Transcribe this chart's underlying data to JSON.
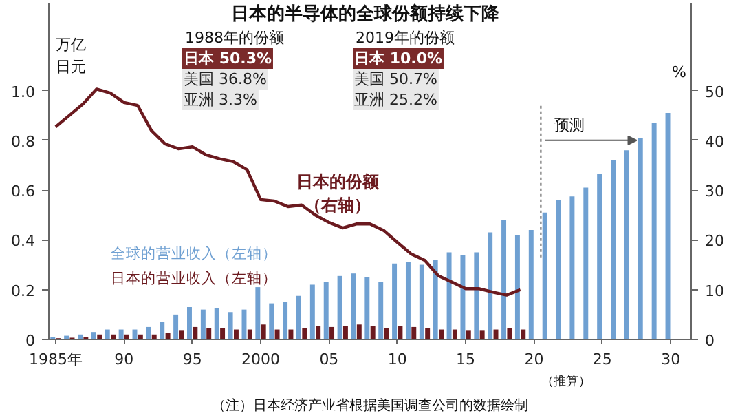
{
  "chart_data": {
    "type": "bar",
    "title": "日本的半导体的全球份额持续下降",
    "ylabel": "万亿日元",
    "y2label": "%",
    "x": [
      1985,
      1986,
      1987,
      1988,
      1989,
      1990,
      1991,
      1992,
      1993,
      1994,
      1995,
      1996,
      1997,
      1998,
      1999,
      2000,
      2001,
      2002,
      2003,
      2004,
      2005,
      2006,
      2007,
      2008,
      2009,
      2010,
      2011,
      2012,
      2013,
      2014,
      2015,
      2016,
      2017,
      2018,
      2019,
      2020,
      2021,
      2022,
      2023,
      2024,
      2025,
      2026,
      2027,
      2028,
      2029,
      2030
    ],
    "series": [
      {
        "name": "全球的营业收入（左轴）",
        "color": "#6fa0d2",
        "values": [
          0.01,
          0.015,
          0.02,
          0.03,
          0.04,
          0.04,
          0.04,
          0.05,
          0.07,
          0.1,
          0.13,
          0.12,
          0.125,
          0.11,
          0.12,
          0.21,
          0.145,
          0.15,
          0.175,
          0.22,
          0.23,
          0.255,
          0.265,
          0.25,
          0.23,
          0.305,
          0.31,
          0.3,
          0.32,
          0.35,
          0.34,
          0.35,
          0.43,
          0.48,
          0.42,
          0.44,
          0.51,
          0.56,
          0.575,
          0.61,
          0.665,
          0.72,
          0.76,
          0.81,
          0.87,
          0.91
        ]
      },
      {
        "name": "日本的营业收入（左轴）",
        "color": "#6b1a1f",
        "values": [
          0.005,
          0.007,
          0.01,
          0.02,
          0.02,
          0.02,
          0.02,
          0.02,
          0.025,
          0.035,
          0.05,
          0.045,
          0.045,
          0.04,
          0.04,
          0.06,
          0.04,
          0.04,
          0.045,
          0.055,
          0.05,
          0.055,
          0.06,
          0.055,
          0.045,
          0.055,
          0.05,
          0.045,
          0.04,
          0.04,
          0.035,
          0.035,
          0.04,
          0.045,
          0.04,
          null,
          null,
          null,
          null,
          null,
          null,
          null,
          null,
          null,
          null,
          null
        ]
      },
      {
        "name": "日本的份额（右轴）",
        "type": "line",
        "axis": "y2",
        "color": "#6b1a1f",
        "values": [
          42.7,
          45,
          47.3,
          50.3,
          49.5,
          47.6,
          47,
          42,
          39.3,
          38.3,
          38.7,
          37.1,
          36.3,
          35.7,
          34.1,
          28.1,
          27.8,
          26.7,
          27,
          25,
          23.5,
          22.4,
          23.2,
          23.2,
          21.9,
          19.5,
          17.2,
          15.9,
          12.8,
          11.5,
          10.2,
          10.2,
          9.5,
          8.9,
          10.0,
          null,
          null,
          null,
          null,
          null,
          null,
          null,
          null,
          null,
          null,
          null
        ]
      }
    ],
    "xlim": [
      1984.5,
      2031.5
    ],
    "xticks": [
      {
        "value": 1985,
        "label": "1985年"
      },
      {
        "value": 1990,
        "label": "90"
      },
      {
        "value": 1995,
        "label": "95"
      },
      2000,
      {
        "value": 2005,
        "label": "05"
      },
      {
        "value": 2010,
        "label": "10"
      },
      {
        "value": 2015,
        "label": "15"
      },
      {
        "value": 2020,
        "label": "20"
      },
      {
        "value": 2025,
        "label": "25"
      },
      {
        "value": 2030,
        "label": "30"
      }
    ],
    "ylim": [
      0,
      1.35
    ],
    "yticks": [
      0,
      0.2,
      0.4,
      0.6,
      0.8,
      {
        "value": 1,
        "label": "1.0"
      }
    ],
    "y2lim": [
      0,
      67.5
    ],
    "y2ticks": [
      0,
      10,
      20,
      30,
      40,
      50
    ],
    "ref_lines": [
      {
        "axis": "x",
        "value": 2020.5,
        "label": "预测",
        "line_style": "dotted"
      }
    ],
    "annotations": [
      "1988年的份额",
      "日本 50.3%",
      "美国 36.8%",
      "亚洲 3.3%",
      "2019年的份额",
      "日本 10.0%",
      "美国 50.7%",
      "亚洲 25.2%",
      "（推算）",
      "（注）日本经济产业省根据美国调查公司的数据绘制"
    ],
    "grid": false,
    "legend": false,
    "marker": "none",
    "line_style": "solid"
  }
}
